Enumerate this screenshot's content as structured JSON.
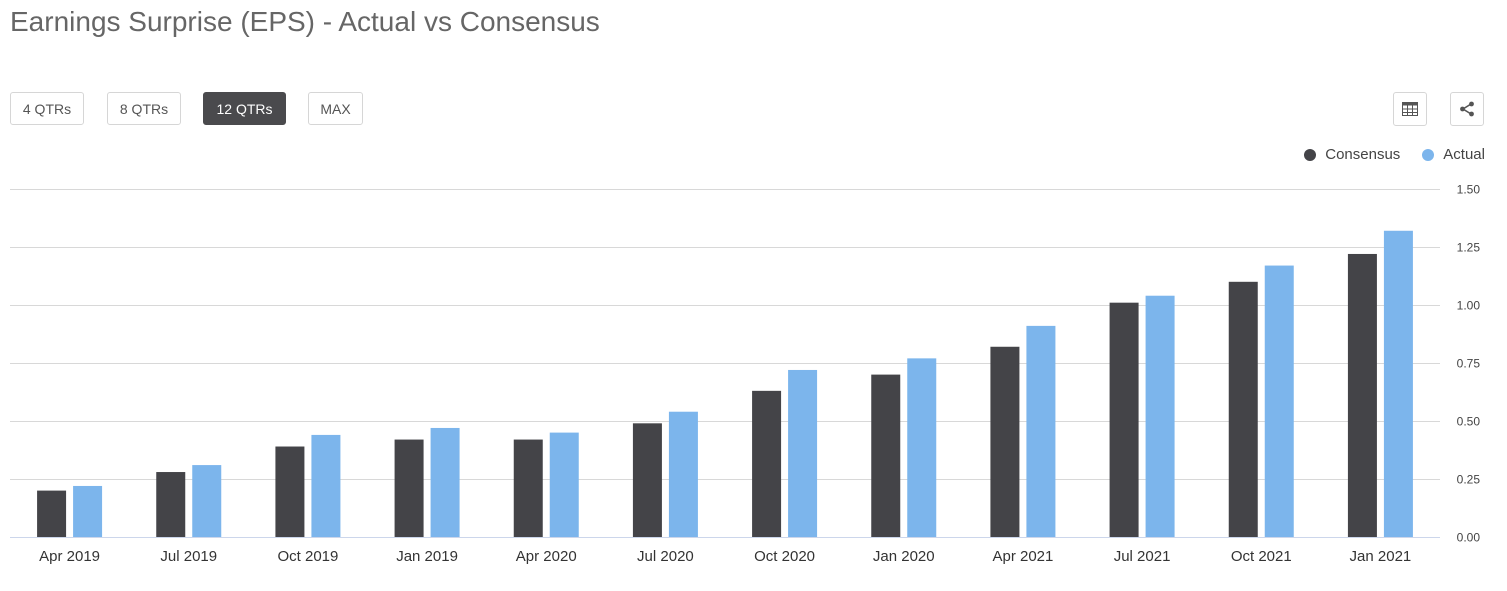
{
  "page": {
    "title": "Earnings Surprise (EPS) - Actual vs Consensus"
  },
  "range_buttons": [
    {
      "label": "4 QTRs",
      "active": false
    },
    {
      "label": "8 QTRs",
      "active": false
    },
    {
      "label": "12 QTRs",
      "active": true
    },
    {
      "label": "MAX",
      "active": false
    }
  ],
  "toolbar": {
    "table_icon": "table-icon",
    "share_icon": "share-icon"
  },
  "colors": {
    "consensus": "#444448",
    "actual": "#7cb5ec",
    "grid": "#d8d8d8",
    "button_active": "#4a4a4d"
  },
  "chart_data": {
    "type": "bar",
    "categories": [
      "Apr 2019",
      "Jul 2019",
      "Oct 2019",
      "Jan 2019",
      "Apr 2020",
      "Jul 2020",
      "Oct 2020",
      "Jan 2020",
      "Apr 2021",
      "Jul 2021",
      "Oct 2021",
      "Jan 2021"
    ],
    "series": [
      {
        "name": "Consensus",
        "values": [
          0.2,
          0.28,
          0.39,
          0.42,
          0.42,
          0.49,
          0.63,
          0.7,
          0.82,
          1.01,
          1.1,
          1.22
        ]
      },
      {
        "name": "Actual",
        "values": [
          0.22,
          0.31,
          0.44,
          0.47,
          0.45,
          0.54,
          0.72,
          0.77,
          0.91,
          1.04,
          1.17,
          1.32
        ]
      }
    ],
    "ylim": [
      0,
      1.5
    ],
    "yticks": [
      "0.00",
      "0.25",
      "0.50",
      "0.75",
      "1.00",
      "1.25",
      "1.50"
    ],
    "ytick_values": [
      0,
      0.25,
      0.5,
      0.75,
      1.0,
      1.25,
      1.5
    ],
    "y_axis_side": "right",
    "grid": true,
    "legend_position": "top-right"
  }
}
